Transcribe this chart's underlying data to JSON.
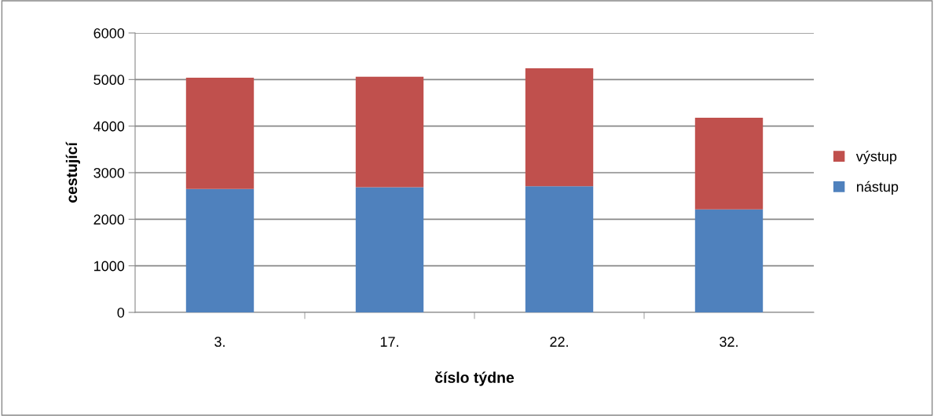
{
  "chart_data": {
    "type": "bar",
    "stacked": true,
    "xlabel": "číslo týdne",
    "ylabel": "cestující",
    "categories": [
      "3.",
      "17.",
      "22.",
      "32."
    ],
    "series": [
      {
        "name": "nástup",
        "color": "#4f81bd",
        "values": [
          2650,
          2690,
          2710,
          2210
        ]
      },
      {
        "name": "výstup",
        "color": "#c0504d",
        "values": [
          2390,
          2370,
          2530,
          1970
        ]
      }
    ],
    "ylim": [
      0,
      6000
    ],
    "yticks": [
      0,
      1000,
      2000,
      3000,
      4000,
      5000,
      6000
    ],
    "grid": "y",
    "legend": "right"
  }
}
